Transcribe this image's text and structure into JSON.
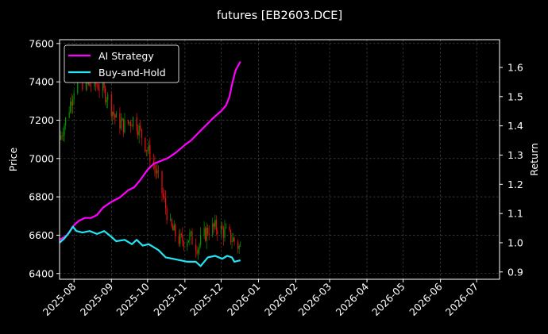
{
  "chart_data": {
    "type": "line",
    "title": "futures [EB2603.DCE]",
    "ylabel_left": "Price",
    "ylabel_right": "Return",
    "x_ticks": [
      "2025-08",
      "2025-09",
      "2025-10",
      "2025-11",
      "2025-12",
      "2026-01",
      "2026-02",
      "2026-03",
      "2026-04",
      "2026-05",
      "2026-06",
      "2026-07"
    ],
    "x_tick_dates": [
      "2025-08-01",
      "2025-09-01",
      "2025-10-01",
      "2025-11-01",
      "2025-12-01",
      "2026-01-01",
      "2026-02-01",
      "2026-03-01",
      "2026-04-01",
      "2026-05-01",
      "2026-06-01",
      "2026-07-01"
    ],
    "xlim": [
      "2025-07-20",
      "2026-07-20"
    ],
    "ylim_left": [
      6370,
      7620
    ],
    "ylim_right": [
      0.875,
      1.695
    ],
    "y_ticks_left": [
      6400,
      6600,
      6800,
      7000,
      7200,
      7400,
      7600
    ],
    "y_ticks_right": [
      0.9,
      1.0,
      1.1,
      1.2,
      1.3,
      1.4,
      1.5,
      1.6
    ],
    "grid": true,
    "legend": {
      "position": "top-left",
      "entries": [
        "AI Strategy",
        "Buy-and-Hold"
      ]
    },
    "colors": {
      "ai": "#ff00ff",
      "bh": "#22e5f5",
      "up": "#009900",
      "down": "#ee1111",
      "background": "#000000",
      "grid": "#555555"
    },
    "series": [
      {
        "name": "AI Strategy",
        "axis": "right",
        "points": [
          [
            "2025-07-20",
            1.01
          ],
          [
            "2025-07-26",
            1.025
          ],
          [
            "2025-08-01",
            1.06
          ],
          [
            "2025-08-05",
            1.075
          ],
          [
            "2025-08-10",
            1.085
          ],
          [
            "2025-08-15",
            1.085
          ],
          [
            "2025-08-20",
            1.095
          ],
          [
            "2025-08-25",
            1.12
          ],
          [
            "2025-09-01",
            1.14
          ],
          [
            "2025-09-08",
            1.155
          ],
          [
            "2025-09-15",
            1.18
          ],
          [
            "2025-09-20",
            1.19
          ],
          [
            "2025-09-25",
            1.215
          ],
          [
            "2025-10-01",
            1.25
          ],
          [
            "2025-10-06",
            1.27
          ],
          [
            "2025-10-12",
            1.28
          ],
          [
            "2025-10-18",
            1.29
          ],
          [
            "2025-10-25",
            1.31
          ],
          [
            "2025-11-01",
            1.335
          ],
          [
            "2025-11-06",
            1.35
          ],
          [
            "2025-11-12",
            1.375
          ],
          [
            "2025-11-18",
            1.4
          ],
          [
            "2025-11-24",
            1.425
          ],
          [
            "2025-11-28",
            1.44
          ],
          [
            "2025-12-01",
            1.45
          ],
          [
            "2025-12-05",
            1.47
          ],
          [
            "2025-12-08",
            1.5
          ],
          [
            "2025-12-10",
            1.54
          ],
          [
            "2025-12-13",
            1.59
          ],
          [
            "2025-12-17",
            1.62
          ]
        ]
      },
      {
        "name": "Buy-and-Hold",
        "axis": "right",
        "points": [
          [
            "2025-07-20",
            1.0
          ],
          [
            "2025-07-24",
            1.015
          ],
          [
            "2025-07-28",
            1.035
          ],
          [
            "2025-07-31",
            1.055
          ],
          [
            "2025-08-03",
            1.04
          ],
          [
            "2025-08-08",
            1.035
          ],
          [
            "2025-08-14",
            1.04
          ],
          [
            "2025-08-20",
            1.03
          ],
          [
            "2025-08-26",
            1.04
          ],
          [
            "2025-09-01",
            1.02
          ],
          [
            "2025-09-05",
            1.005
          ],
          [
            "2025-09-12",
            1.01
          ],
          [
            "2025-09-18",
            0.995
          ],
          [
            "2025-09-22",
            1.01
          ],
          [
            "2025-09-27",
            0.99
          ],
          [
            "2025-10-02",
            0.995
          ],
          [
            "2025-10-10",
            0.975
          ],
          [
            "2025-10-16",
            0.95
          ],
          [
            "2025-10-22",
            0.945
          ],
          [
            "2025-10-28",
            0.94
          ],
          [
            "2025-11-03",
            0.935
          ],
          [
            "2025-11-10",
            0.935
          ],
          [
            "2025-11-14",
            0.92
          ],
          [
            "2025-11-20",
            0.95
          ],
          [
            "2025-11-26",
            0.955
          ],
          [
            "2025-12-02",
            0.945
          ],
          [
            "2025-12-06",
            0.955
          ],
          [
            "2025-12-10",
            0.95
          ],
          [
            "2025-12-12",
            0.935
          ],
          [
            "2025-12-17",
            0.94
          ]
        ]
      }
    ],
    "price_waypoints": [
      [
        "2025-07-20",
        7100
      ],
      [
        "2025-07-27",
        7240
      ],
      [
        "2025-08-03",
        7420
      ],
      [
        "2025-08-12",
        7380
      ],
      [
        "2025-08-20",
        7390
      ],
      [
        "2025-08-28",
        7330
      ],
      [
        "2025-09-05",
        7200
      ],
      [
        "2025-09-12",
        7170
      ],
      [
        "2025-09-20",
        7210
      ],
      [
        "2025-09-28",
        7090
      ],
      [
        "2025-10-05",
        6990
      ],
      [
        "2025-10-12",
        6850
      ],
      [
        "2025-10-20",
        6640
      ],
      [
        "2025-10-28",
        6570
      ],
      [
        "2025-11-05",
        6590
      ],
      [
        "2025-11-12",
        6540
      ],
      [
        "2025-11-20",
        6630
      ],
      [
        "2025-11-28",
        6640
      ],
      [
        "2025-12-05",
        6610
      ],
      [
        "2025-12-12",
        6570
      ],
      [
        "2025-12-17",
        6530
      ]
    ]
  }
}
